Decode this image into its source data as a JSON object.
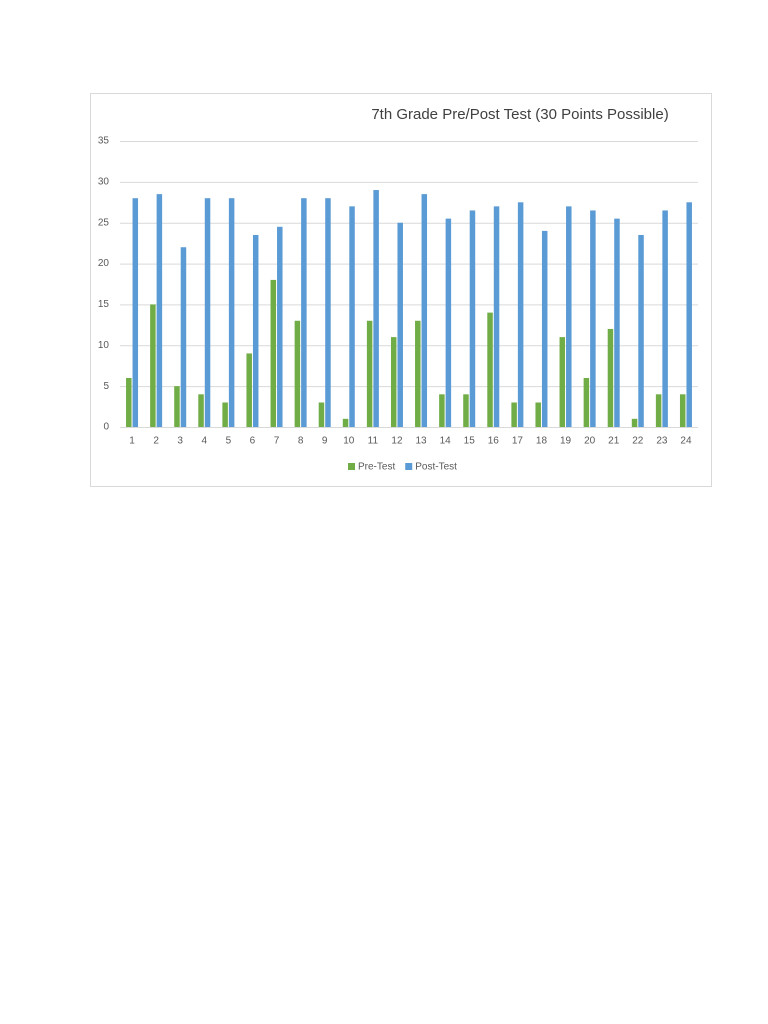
{
  "chart_data": {
    "type": "bar",
    "title": "7th Grade Pre/Post Test (30 Points Possible)",
    "categories": [
      "1",
      "2",
      "3",
      "4",
      "5",
      "6",
      "7",
      "8",
      "9",
      "10",
      "11",
      "12",
      "13",
      "14",
      "15",
      "16",
      "17",
      "18",
      "19",
      "20",
      "21",
      "22",
      "23",
      "24"
    ],
    "series": [
      {
        "name": "Pre-Test",
        "color": "#70ad47",
        "values": [
          6,
          15,
          5,
          4,
          3,
          9,
          18,
          13,
          3,
          1,
          13,
          11,
          13,
          4,
          4,
          14,
          3,
          3,
          11,
          6,
          12,
          1,
          4,
          4
        ]
      },
      {
        "name": "Post-Test",
        "color": "#5b9bd5",
        "values": [
          28,
          28.5,
          22,
          28,
          28,
          23.5,
          24.5,
          28,
          28,
          27,
          29,
          25,
          28.5,
          25.5,
          26.5,
          27,
          27.5,
          24,
          27,
          26.5,
          25.5,
          23.5,
          26.5,
          27.5
        ]
      }
    ],
    "ylim": [
      0,
      35
    ],
    "yticks": [
      0,
      5,
      10,
      15,
      20,
      25,
      30,
      35
    ],
    "grid": true,
    "legend": "bottom"
  }
}
